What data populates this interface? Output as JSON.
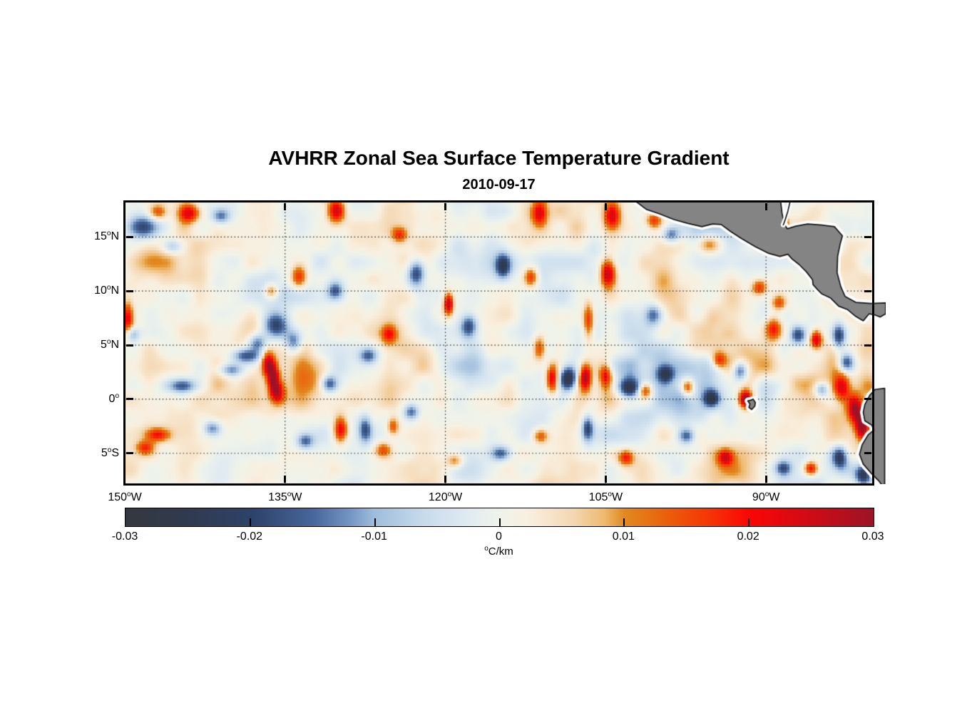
{
  "chart_data": {
    "type": "heatmap",
    "title": "AVHRR Zonal Sea Surface Temperature Gradient",
    "subtitle": "2010-09-17",
    "degree_glyph": "o",
    "x_axis": {
      "ticks": [
        {
          "deg": "150",
          "hem": "W",
          "lon": -150,
          "label": "150°W"
        },
        {
          "deg": "135",
          "hem": "W",
          "lon": -135,
          "label": "135°W"
        },
        {
          "deg": "120",
          "hem": "W",
          "lon": -120,
          "label": "120°W"
        },
        {
          "deg": "105",
          "hem": "W",
          "lon": -105,
          "label": "105°W"
        },
        {
          "deg": "90",
          "hem": "W",
          "lon": -90,
          "label": "90°W"
        }
      ],
      "lon_range": [
        -150,
        -80
      ]
    },
    "y_axis": {
      "ticks": [
        {
          "deg": "15",
          "hem": "N",
          "lat": 15,
          "label": "15°N"
        },
        {
          "deg": "10",
          "hem": "N",
          "lat": 10,
          "label": "10°N"
        },
        {
          "deg": "5",
          "hem": "N",
          "lat": 5,
          "label": "5°N"
        },
        {
          "deg": "0",
          "hem": "",
          "lat": 0,
          "label": "0°"
        },
        {
          "deg": "5",
          "hem": "S",
          "lat": -5,
          "label": "5°S"
        }
      ],
      "lat_range": [
        -7.85,
        18.25
      ]
    },
    "gridlines": {
      "lons": [
        -135,
        -120,
        -105,
        -90
      ],
      "lats": [
        15,
        10,
        5,
        0,
        -5
      ],
      "style": "dotted"
    },
    "colorbar": {
      "label": "°C/km",
      "unit_sup": "o",
      "unit_rest": "C/km",
      "range": [
        -0.03,
        0.03
      ],
      "orientation": "horizontal",
      "ticks": [
        {
          "label": "-0.03",
          "value": -0.03
        },
        {
          "label": "-0.02",
          "value": -0.02
        },
        {
          "label": "-0.01",
          "value": -0.01
        },
        {
          "label": "0",
          "value": 0
        },
        {
          "label": "0.01",
          "value": 0.01
        },
        {
          "label": "0.02",
          "value": 0.02
        },
        {
          "label": "0.03",
          "value": 0.03
        }
      ],
      "inner_tick_values": [
        -0.02,
        -0.01,
        0,
        0.01,
        0.02
      ]
    },
    "colormap": [
      [
        0.0,
        "#34383e"
      ],
      [
        0.085,
        "#303a50"
      ],
      [
        0.17,
        "#2e4269"
      ],
      [
        0.25,
        "#47669b"
      ],
      [
        0.3,
        "#7395c2"
      ],
      [
        0.333,
        "#9fbddc"
      ],
      [
        0.4,
        "#c8dbec"
      ],
      [
        0.46,
        "#e1ebf1"
      ],
      [
        0.5,
        "#eff3ea"
      ],
      [
        0.54,
        "#f9efdf"
      ],
      [
        0.6,
        "#f4d6b1"
      ],
      [
        0.64,
        "#eeb96e"
      ],
      [
        0.667,
        "#e1891f"
      ],
      [
        0.73,
        "#ec5a0a"
      ],
      [
        0.78,
        "#f63506"
      ],
      [
        0.833,
        "#fb0605"
      ],
      [
        0.9,
        "#d80a13"
      ],
      [
        1.0,
        "#9d1326"
      ]
    ],
    "land": {
      "fill": "#848484",
      "outline": "#161616",
      "halo": "#ffffff",
      "polygons": [
        [
          [
            -102.4,
            18.45
          ],
          [
            -101.2,
            17.55
          ],
          [
            -100.0,
            17.15
          ],
          [
            -98.6,
            16.6
          ],
          [
            -97.3,
            16.25
          ],
          [
            -96.0,
            15.95
          ],
          [
            -95.0,
            16.2
          ],
          [
            -94.2,
            16.15
          ],
          [
            -93.3,
            15.5
          ],
          [
            -92.3,
            14.85
          ],
          [
            -91.0,
            14.1
          ],
          [
            -89.8,
            13.5
          ],
          [
            -88.7,
            13.2
          ],
          [
            -87.95,
            13.4
          ],
          [
            -87.55,
            12.95
          ],
          [
            -86.9,
            12.45
          ],
          [
            -86.2,
            11.75
          ],
          [
            -85.65,
            11.05
          ],
          [
            -85.6,
            10.6
          ],
          [
            -85.15,
            10.1
          ],
          [
            -84.8,
            9.75
          ],
          [
            -83.95,
            9.35
          ],
          [
            -83.2,
            8.6
          ],
          [
            -82.4,
            8.3
          ],
          [
            -81.6,
            7.65
          ],
          [
            -80.9,
            7.25
          ],
          [
            -80.35,
            7.9
          ],
          [
            -79.85,
            7.8
          ],
          [
            -79.3,
            7.6
          ],
          [
            -78.8,
            7.9
          ],
          [
            -78.8,
            8.9
          ],
          [
            -80.2,
            8.85
          ],
          [
            -81.6,
            8.95
          ],
          [
            -82.6,
            9.5
          ],
          [
            -83.0,
            10.4
          ],
          [
            -83.35,
            11.7
          ],
          [
            -83.3,
            13.2
          ],
          [
            -83.05,
            14.4
          ],
          [
            -82.85,
            15.1
          ],
          [
            -83.6,
            15.95
          ],
          [
            -84.8,
            16.1
          ],
          [
            -86.1,
            16.2
          ],
          [
            -87.2,
            16.0
          ],
          [
            -88.0,
            15.75
          ],
          [
            -88.3,
            16.2
          ],
          [
            -88.5,
            17.2
          ],
          [
            -88.65,
            18.45
          ]
        ],
        [
          [
            -78.9,
            1.0
          ],
          [
            -79.8,
            0.9
          ],
          [
            -80.3,
            0.35
          ],
          [
            -80.75,
            -0.5
          ],
          [
            -80.9,
            -1.2
          ],
          [
            -80.75,
            -2.0
          ],
          [
            -80.1,
            -2.4
          ],
          [
            -79.9,
            -2.85
          ],
          [
            -80.45,
            -3.3
          ],
          [
            -81.0,
            -4.2
          ],
          [
            -81.25,
            -5.1
          ],
          [
            -80.9,
            -6.0
          ],
          [
            -80.1,
            -6.9
          ],
          [
            -79.4,
            -7.6
          ],
          [
            -78.9,
            -8.3
          ]
        ],
        [
          [
            -91.2,
            0.0
          ],
          [
            -91.0,
            -0.3
          ],
          [
            -91.05,
            -0.65
          ],
          [
            -91.35,
            -0.95
          ],
          [
            -91.6,
            -0.75
          ],
          [
            -91.5,
            -0.45
          ],
          [
            -91.7,
            -0.15
          ],
          [
            -91.45,
            -0.1
          ]
        ]
      ],
      "coast_lines": [
        [
          [
            -87.72,
            18.4
          ],
          [
            -87.95,
            17.4
          ],
          [
            -88.2,
            16.6
          ],
          [
            -88.38,
            16.12
          ]
        ]
      ]
    },
    "features": [
      [
        -149.7,
        7.5,
        0.35,
        1.0,
        0.018
      ],
      [
        -149.3,
        6.0,
        0.5,
        0.5,
        -0.014
      ],
      [
        -148.6,
        15.9,
        1.1,
        0.75,
        -0.02
      ],
      [
        -146.9,
        17.3,
        0.6,
        0.5,
        0.016
      ],
      [
        -144.0,
        17.2,
        0.7,
        0.6,
        0.021
      ],
      [
        -145.6,
        14.1,
        0.7,
        0.5,
        -0.013
      ],
      [
        -141.0,
        16.9,
        0.6,
        0.5,
        -0.015
      ],
      [
        -130.2,
        17.4,
        0.55,
        0.8,
        0.022
      ],
      [
        -124.3,
        15.2,
        0.5,
        0.5,
        0.015
      ],
      [
        -111.2,
        17.2,
        0.5,
        0.8,
        0.02
      ],
      [
        -104.4,
        17.0,
        0.55,
        0.9,
        0.023
      ],
      [
        -100.5,
        16.5,
        0.5,
        0.5,
        0.016
      ],
      [
        -98.9,
        15.2,
        0.55,
        0.5,
        -0.015
      ],
      [
        -104.8,
        11.7,
        0.5,
        0.95,
        0.026
      ],
      [
        -133.7,
        11.3,
        0.5,
        0.7,
        0.018
      ],
      [
        -136.3,
        10.0,
        0.45,
        0.5,
        0.015
      ],
      [
        -130.3,
        10.0,
        0.55,
        0.6,
        -0.017
      ],
      [
        -122.7,
        11.6,
        0.55,
        0.85,
        -0.02
      ],
      [
        -114.6,
        12.3,
        0.5,
        0.8,
        -0.021
      ],
      [
        -112.0,
        11.3,
        0.45,
        0.6,
        0.017
      ],
      [
        -119.7,
        8.8,
        0.32,
        0.7,
        0.027
      ],
      [
        -117.8,
        6.7,
        0.55,
        0.75,
        -0.019
      ],
      [
        -125.3,
        6.0,
        0.5,
        0.6,
        0.016
      ],
      [
        -127.2,
        4.0,
        0.6,
        0.5,
        -0.015
      ],
      [
        -135.9,
        6.8,
        0.85,
        0.9,
        -0.023
      ],
      [
        -137.6,
        5.2,
        0.6,
        0.6,
        -0.018
      ],
      [
        -134.2,
        5.3,
        0.55,
        0.7,
        -0.016
      ],
      [
        -136.6,
        3.3,
        0.42,
        0.8,
        0.023
      ],
      [
        -136.1,
        1.9,
        0.38,
        0.9,
        0.026
      ],
      [
        -135.7,
        0.6,
        0.45,
        0.7,
        0.019
      ],
      [
        -138.6,
        4.0,
        1.0,
        0.5,
        -0.021
      ],
      [
        -140.0,
        2.7,
        0.8,
        0.45,
        -0.017
      ],
      [
        -144.6,
        1.2,
        0.9,
        0.45,
        -0.017
      ],
      [
        -130.9,
        1.4,
        0.55,
        0.55,
        -0.019
      ],
      [
        -132.8,
        2.5,
        1.4,
        1.3,
        0.007
      ],
      [
        -111.2,
        4.7,
        0.4,
        0.8,
        0.016
      ],
      [
        -106.6,
        7.3,
        0.35,
        1.2,
        0.018
      ],
      [
        -100.5,
        7.8,
        0.6,
        0.7,
        -0.016
      ],
      [
        -110.0,
        1.9,
        0.4,
        0.9,
        0.024
      ],
      [
        -108.5,
        1.9,
        0.55,
        0.75,
        -0.028
      ],
      [
        -106.9,
        2.0,
        0.4,
        0.85,
        0.027
      ],
      [
        -105.0,
        2.2,
        0.45,
        0.8,
        0.02
      ],
      [
        -102.8,
        1.0,
        0.7,
        0.6,
        -0.022
      ],
      [
        -101.3,
        0.8,
        0.45,
        0.5,
        0.018
      ],
      [
        -99.4,
        2.3,
        0.5,
        0.5,
        -0.018
      ],
      [
        -97.3,
        1.1,
        0.42,
        0.55,
        0.02
      ],
      [
        -95.1,
        0.1,
        0.5,
        0.5,
        -0.02
      ],
      [
        -92.4,
        2.6,
        0.5,
        0.65,
        -0.02
      ],
      [
        -94.4,
        3.6,
        0.45,
        0.5,
        0.016
      ],
      [
        -91.9,
        0.0,
        0.42,
        0.55,
        0.028
      ],
      [
        -89.3,
        6.5,
        0.55,
        0.8,
        0.019
      ],
      [
        -87.0,
        5.9,
        0.5,
        0.6,
        -0.019
      ],
      [
        -85.3,
        5.5,
        0.4,
        0.6,
        0.026
      ],
      [
        -83.2,
        5.8,
        0.45,
        0.85,
        -0.022
      ],
      [
        -95.3,
        14.3,
        0.8,
        0.6,
        0.013
      ],
      [
        -90.6,
        10.3,
        0.5,
        0.5,
        0.017
      ],
      [
        -88.8,
        8.9,
        0.5,
        0.5,
        0.015
      ],
      [
        -82.9,
        1.1,
        0.55,
        0.9,
        0.019
      ],
      [
        -81.7,
        -0.9,
        0.45,
        0.8,
        0.023
      ],
      [
        -81.0,
        -2.4,
        0.42,
        0.9,
        0.03
      ],
      [
        -84.8,
        0.9,
        0.5,
        0.5,
        -0.017
      ],
      [
        -82.5,
        3.4,
        0.5,
        0.6,
        -0.019
      ],
      [
        -146.9,
        -3.3,
        0.8,
        0.45,
        0.017
      ],
      [
        -148.1,
        -4.5,
        0.6,
        0.45,
        0.015
      ],
      [
        -141.8,
        -2.7,
        0.6,
        0.5,
        -0.015
      ],
      [
        -129.8,
        -2.8,
        0.45,
        0.8,
        0.021
      ],
      [
        -127.5,
        -2.8,
        0.45,
        0.9,
        -0.018
      ],
      [
        -124.9,
        -2.5,
        0.4,
        0.6,
        0.016
      ],
      [
        -123.2,
        -1.2,
        0.5,
        0.5,
        -0.016
      ],
      [
        -125.8,
        -4.7,
        0.55,
        0.5,
        0.015
      ],
      [
        -133.1,
        -3.9,
        0.55,
        0.5,
        -0.015
      ],
      [
        -119.1,
        -5.7,
        0.55,
        0.45,
        0.013
      ],
      [
        -114.8,
        -5.0,
        0.65,
        0.5,
        -0.017
      ],
      [
        -111.1,
        -3.4,
        0.5,
        0.5,
        0.015
      ],
      [
        -106.7,
        -2.7,
        0.38,
        0.85,
        -0.019
      ],
      [
        -103.1,
        -5.4,
        0.5,
        0.5,
        0.017
      ],
      [
        -97.4,
        -3.4,
        0.55,
        0.5,
        -0.017
      ],
      [
        -93.8,
        -5.4,
        0.5,
        0.5,
        0.019
      ],
      [
        -88.4,
        -6.4,
        0.55,
        0.5,
        -0.019
      ],
      [
        -85.8,
        -6.4,
        0.45,
        0.45,
        0.021
      ],
      [
        -83.1,
        -5.4,
        0.5,
        0.75,
        -0.021
      ],
      [
        -80.9,
        -7.0,
        0.5,
        0.6,
        -0.022
      ],
      [
        -86.0,
        13.0,
        0.5,
        0.45,
        0.014
      ],
      [
        -88.35,
        16.35,
        0.25,
        0.3,
        0.024
      ]
    ],
    "noise": {
      "octaves": [
        {
          "wavelength": 3.2,
          "amp": 0.0048
        },
        {
          "wavelength": 1.6,
          "amp": 0.0032
        },
        {
          "wavelength": 6.0,
          "amp": 0.0042
        }
      ],
      "bias": 0.0013
    }
  }
}
